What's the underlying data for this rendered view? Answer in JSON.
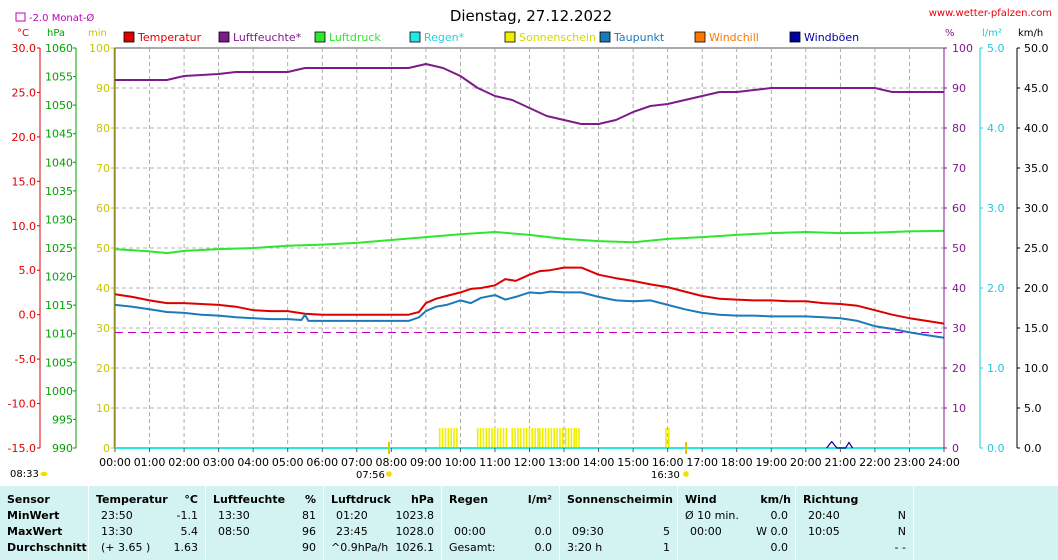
{
  "header": {
    "title": "Dienstag, 27.12.2022",
    "site": "www.wetter-pfalzen.com",
    "monthly_avg_label": "-2.0 Monat-Ø"
  },
  "axes": {
    "unit_c": "°C",
    "unit_hpa": "hPa",
    "unit_min": "min",
    "unit_pct": "%",
    "unit_lm2": "l/m²",
    "unit_kmh": "km/h"
  },
  "legend": [
    {
      "label": "Temperatur",
      "color": "#dd0000"
    },
    {
      "label": "Luftfeuchte*",
      "color": "#7f1a8c"
    },
    {
      "label": "Luftdruck",
      "color": "#2ee62e"
    },
    {
      "label": "Regen*",
      "color": "#22e8e8"
    },
    {
      "label": "Sonnenschein",
      "color": "#eeee00"
    },
    {
      "label": "Taupunkt",
      "color": "#1c7ab8"
    },
    {
      "label": "Windchill",
      "color": "#ff7700"
    },
    {
      "label": "Windböen",
      "color": "#0000a0"
    }
  ],
  "sun_events": {
    "sunrise": "08:33",
    "sunrise_mark": "07:56",
    "sunset_mark": "16:30"
  },
  "chart_data": {
    "type": "line",
    "title": "Dienstag, 27.12.2022",
    "x_unit": "hour",
    "xlim": [
      0,
      24
    ],
    "x_tick_labels": [
      "00:00",
      "01:00",
      "02:00",
      "03:00",
      "04:00",
      "05:00",
      "06:00",
      "07:00",
      "08:00",
      "09:00",
      "10:00",
      "11:00",
      "12:00",
      "13:00",
      "14:00",
      "15:00",
      "16:00",
      "17:00",
      "18:00",
      "19:00",
      "20:00",
      "21:00",
      "22:00",
      "23:00",
      "24:00"
    ],
    "axes": {
      "temp_c": {
        "range": [
          -15,
          30
        ],
        "step": 5,
        "format": 1
      },
      "pressure_hpa": {
        "range": [
          990,
          1060
        ],
        "step": 5,
        "format": 0
      },
      "sun_min": {
        "range": [
          0,
          100
        ],
        "step": 10,
        "format": 0
      },
      "humidity_pct": {
        "range": [
          0,
          100
        ],
        "step": 10,
        "format": 0
      },
      "rain_lm2": {
        "range": [
          0,
          5
        ],
        "step": 1,
        "format": 1
      },
      "wind_kmh": {
        "range": [
          0,
          50
        ],
        "step": 5,
        "format": 1
      }
    },
    "monthly_avg_temp": -2.0,
    "series": [
      {
        "name": "Temperatur",
        "axis": "temp_c",
        "color": "#dd0000",
        "points": [
          [
            0,
            2.3
          ],
          [
            0.5,
            2.0
          ],
          [
            1,
            1.6
          ],
          [
            1.5,
            1.3
          ],
          [
            2,
            1.3
          ],
          [
            2.5,
            1.2
          ],
          [
            3,
            1.1
          ],
          [
            3.5,
            0.9
          ],
          [
            4,
            0.5
          ],
          [
            4.5,
            0.4
          ],
          [
            5,
            0.4
          ],
          [
            5.5,
            0.1
          ],
          [
            6,
            0.0
          ],
          [
            7,
            0.0
          ],
          [
            8,
            0.0
          ],
          [
            8.5,
            0.0
          ],
          [
            8.8,
            0.3
          ],
          [
            9,
            1.3
          ],
          [
            9.3,
            1.8
          ],
          [
            9.6,
            2.1
          ],
          [
            10,
            2.5
          ],
          [
            10.3,
            2.9
          ],
          [
            10.6,
            3.0
          ],
          [
            11,
            3.3
          ],
          [
            11.3,
            4.0
          ],
          [
            11.6,
            3.8
          ],
          [
            12,
            4.5
          ],
          [
            12.3,
            4.9
          ],
          [
            12.6,
            5.0
          ],
          [
            13,
            5.3
          ],
          [
            13.5,
            5.3
          ],
          [
            14,
            4.5
          ],
          [
            14.5,
            4.1
          ],
          [
            15,
            3.8
          ],
          [
            15.5,
            3.4
          ],
          [
            16,
            3.1
          ],
          [
            16.5,
            2.6
          ],
          [
            17,
            2.1
          ],
          [
            17.5,
            1.8
          ],
          [
            18,
            1.7
          ],
          [
            18.5,
            1.6
          ],
          [
            19,
            1.6
          ],
          [
            19.5,
            1.5
          ],
          [
            20,
            1.5
          ],
          [
            20.5,
            1.3
          ],
          [
            21,
            1.2
          ],
          [
            21.5,
            1.0
          ],
          [
            22,
            0.5
          ],
          [
            22.5,
            0.0
          ],
          [
            23,
            -0.4
          ],
          [
            23.5,
            -0.7
          ],
          [
            24,
            -1.0
          ]
        ]
      },
      {
        "name": "Luftfeuchte*",
        "axis": "humidity_pct",
        "color": "#7f1a8c",
        "points": [
          [
            0,
            92
          ],
          [
            1,
            92
          ],
          [
            1.5,
            92
          ],
          [
            2,
            93
          ],
          [
            3,
            93.5
          ],
          [
            3.5,
            94
          ],
          [
            4,
            94
          ],
          [
            5,
            94
          ],
          [
            5.5,
            95
          ],
          [
            6,
            95
          ],
          [
            7,
            95
          ],
          [
            8,
            95
          ],
          [
            8.5,
            95
          ],
          [
            9,
            96
          ],
          [
            9.5,
            95
          ],
          [
            10,
            93
          ],
          [
            10.5,
            90
          ],
          [
            11,
            88
          ],
          [
            11.5,
            87
          ],
          [
            12,
            85
          ],
          [
            12.5,
            83
          ],
          [
            13,
            82
          ],
          [
            13.5,
            81
          ],
          [
            14,
            81
          ],
          [
            14.5,
            82
          ],
          [
            15,
            84
          ],
          [
            15.5,
            85.5
          ],
          [
            16,
            86
          ],
          [
            16.5,
            87
          ],
          [
            17,
            88
          ],
          [
            17.5,
            89
          ],
          [
            18,
            89
          ],
          [
            18.5,
            89.5
          ],
          [
            19,
            90
          ],
          [
            20,
            90
          ],
          [
            20.5,
            90
          ],
          [
            21,
            90
          ],
          [
            22,
            90
          ],
          [
            22.5,
            89
          ],
          [
            23,
            89
          ],
          [
            24,
            89
          ]
        ]
      },
      {
        "name": "Luftdruck",
        "axis": "pressure_hpa",
        "color": "#2ee62e",
        "points": [
          [
            0,
            1024.8
          ],
          [
            1,
            1024.4
          ],
          [
            1.5,
            1024.1
          ],
          [
            2,
            1024.5
          ],
          [
            3,
            1024.8
          ],
          [
            4,
            1025.0
          ],
          [
            5,
            1025.4
          ],
          [
            6,
            1025.6
          ],
          [
            7,
            1025.9
          ],
          [
            8,
            1026.4
          ],
          [
            9,
            1026.9
          ],
          [
            10,
            1027.4
          ],
          [
            11,
            1027.8
          ],
          [
            12,
            1027.3
          ],
          [
            13,
            1026.6
          ],
          [
            14,
            1026.2
          ],
          [
            15,
            1026.0
          ],
          [
            15.5,
            1026.3
          ],
          [
            16,
            1026.6
          ],
          [
            17,
            1026.9
          ],
          [
            18,
            1027.3
          ],
          [
            19,
            1027.6
          ],
          [
            20,
            1027.8
          ],
          [
            21,
            1027.6
          ],
          [
            22,
            1027.7
          ],
          [
            23,
            1027.9
          ],
          [
            24,
            1028.0
          ]
        ]
      },
      {
        "name": "Taupunkt",
        "axis": "temp_c",
        "color": "#1c7ab8",
        "points": [
          [
            0,
            1.1
          ],
          [
            0.5,
            0.9
          ],
          [
            1,
            0.6
          ],
          [
            1.5,
            0.3
          ],
          [
            2,
            0.2
          ],
          [
            2.5,
            0.0
          ],
          [
            3,
            -0.1
          ],
          [
            3.5,
            -0.3
          ],
          [
            4,
            -0.4
          ],
          [
            4.5,
            -0.5
          ],
          [
            5,
            -0.5
          ],
          [
            5.4,
            -0.6
          ],
          [
            5.5,
            0.0
          ],
          [
            5.6,
            -0.7
          ],
          [
            6,
            -0.7
          ],
          [
            7,
            -0.7
          ],
          [
            8,
            -0.7
          ],
          [
            8.5,
            -0.7
          ],
          [
            8.8,
            -0.3
          ],
          [
            9,
            0.4
          ],
          [
            9.3,
            0.9
          ],
          [
            9.6,
            1.1
          ],
          [
            10,
            1.6
          ],
          [
            10.3,
            1.3
          ],
          [
            10.6,
            1.9
          ],
          [
            11,
            2.2
          ],
          [
            11.3,
            1.7
          ],
          [
            11.6,
            2.0
          ],
          [
            12,
            2.5
          ],
          [
            12.3,
            2.4
          ],
          [
            12.6,
            2.6
          ],
          [
            13,
            2.5
          ],
          [
            13.5,
            2.5
          ],
          [
            14,
            2.0
          ],
          [
            14.5,
            1.6
          ],
          [
            15,
            1.5
          ],
          [
            15.5,
            1.6
          ],
          [
            16,
            1.1
          ],
          [
            16.5,
            0.6
          ],
          [
            17,
            0.2
          ],
          [
            17.5,
            0.0
          ],
          [
            18,
            -0.1
          ],
          [
            18.5,
            -0.1
          ],
          [
            19,
            -0.2
          ],
          [
            19.5,
            -0.2
          ],
          [
            20,
            -0.2
          ],
          [
            20.5,
            -0.3
          ],
          [
            21,
            -0.4
          ],
          [
            21.5,
            -0.7
          ],
          [
            22,
            -1.3
          ],
          [
            22.5,
            -1.6
          ],
          [
            23,
            -2.0
          ],
          [
            23.5,
            -2.3
          ],
          [
            24,
            -2.6
          ]
        ]
      },
      {
        "name": "Regen*",
        "axis": "rain_lm2",
        "color": "#22e8e8",
        "points": [
          [
            0,
            0
          ],
          [
            24,
            0
          ]
        ]
      },
      {
        "name": "Windböen",
        "axis": "wind_kmh",
        "color": "#0000a0",
        "points": [
          [
            20.6,
            0
          ],
          [
            20.75,
            0.8
          ],
          [
            20.9,
            0
          ],
          [
            21.15,
            0
          ],
          [
            21.25,
            0.7
          ],
          [
            21.35,
            0
          ]
        ]
      }
    ],
    "sunshine_minutes": [
      {
        "from": 9.4,
        "to": 9.9,
        "value": 5
      },
      {
        "from": 10.5,
        "to": 11.4,
        "value": 5
      },
      {
        "from": 11.5,
        "to": 12.3,
        "value": 5
      },
      {
        "from": 12.3,
        "to": 13.3,
        "value": 5
      },
      {
        "from": 13.35,
        "to": 13.45,
        "value": 5
      },
      {
        "from": 15.95,
        "to": 16.05,
        "value": 5
      }
    ]
  },
  "stats": {
    "row_labels": [
      "Sensor",
      "MinWert",
      "MaxWert",
      "Durchschnitt"
    ],
    "temp": {
      "title": "Temperatur",
      "unit": "°C",
      "rows": [
        [
          "23:50",
          "-1.1"
        ],
        [
          "13:30",
          "5.4"
        ],
        [
          "(+ 3.65 )",
          "1.63"
        ]
      ]
    },
    "hum": {
      "title": "Luftfeuchte",
      "unit": "%",
      "rows": [
        [
          "13:30",
          "81"
        ],
        [
          "08:50",
          "96"
        ],
        [
          "",
          "90"
        ]
      ]
    },
    "press": {
      "title": "Luftdruck",
      "unit": "hPa",
      "rows": [
        [
          "01:20",
          "1023.8"
        ],
        [
          "23:45",
          "1028.0"
        ],
        [
          "^0.9hPa/h",
          "1026.1"
        ]
      ]
    },
    "rain": {
      "title": "Regen",
      "unit": "l/m²",
      "rows": [
        [
          "",
          ""
        ],
        [
          "00:00",
          "0.0"
        ],
        [
          "Gesamt:",
          "0.0"
        ]
      ]
    },
    "sun": {
      "title": "Sonnenschein",
      "unit": "min",
      "rows": [
        [
          "",
          ""
        ],
        [
          "09:30",
          "5"
        ],
        [
          "3:20 h",
          "1"
        ]
      ]
    },
    "wind": {
      "title": "Wind",
      "unit": "km/h",
      "rows": [
        [
          "Ø 10 min.",
          "0.0"
        ],
        [
          "00:00",
          "W 0.0"
        ],
        [
          "",
          "0.0"
        ]
      ]
    },
    "dir": {
      "title": "Richtung",
      "unit": "",
      "rows": [
        [
          "20:40",
          "N"
        ],
        [
          "10:05",
          "N"
        ],
        [
          "",
          "- -"
        ]
      ]
    }
  }
}
